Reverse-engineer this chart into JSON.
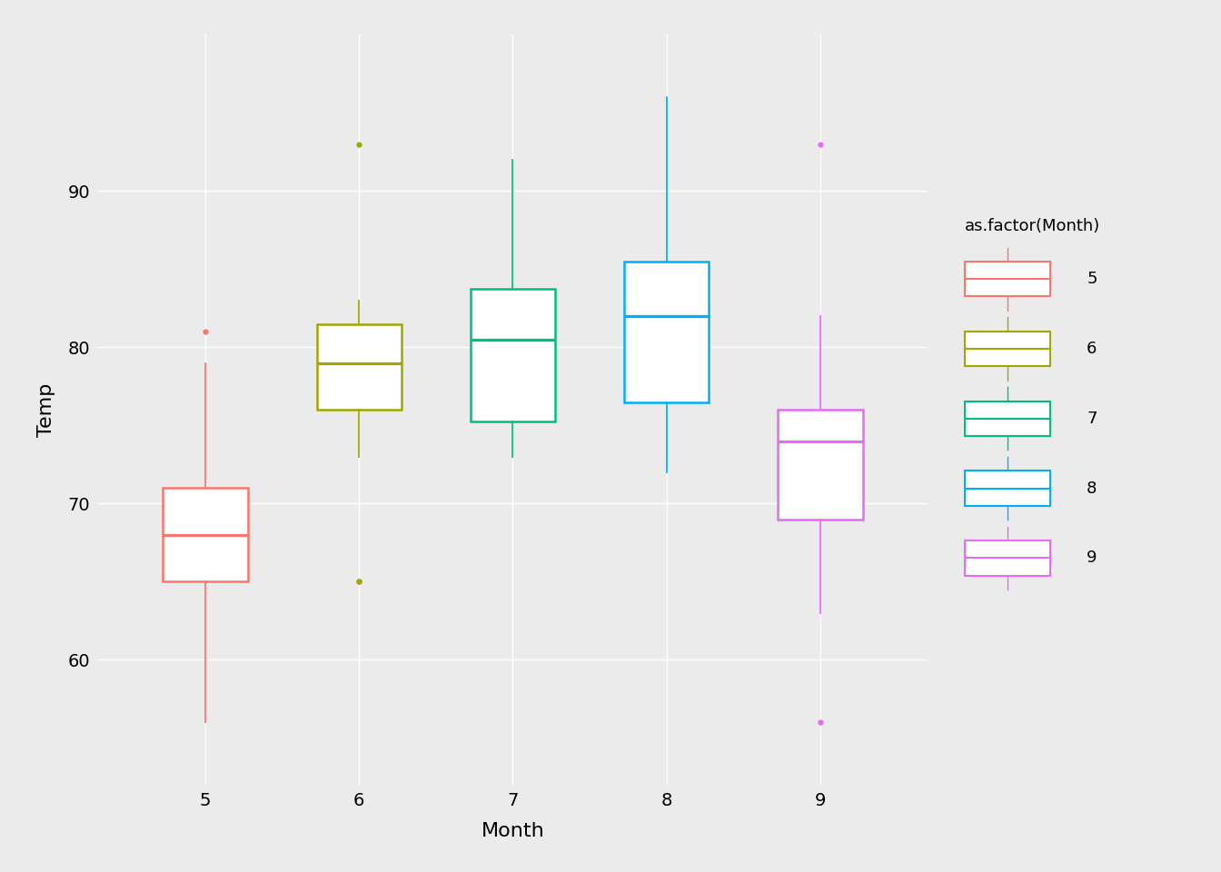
{
  "title": "",
  "xlabel": "Month",
  "ylabel": "Temp",
  "legend_title": "as.factor(Month)",
  "months": [
    5,
    6,
    7,
    8,
    9
  ],
  "colors": {
    "5": "#F8766D",
    "6": "#A3A500",
    "7": "#00BF7D",
    "8": "#00B0F6",
    "9": "#E76BF3"
  },
  "background_color": "#EBEBEB",
  "grid_color": "#FFFFFF",
  "ylim": [
    52,
    100
  ],
  "yticks": [
    60,
    70,
    80,
    90
  ],
  "data": {
    "5": [
      56,
      58,
      59,
      60,
      60,
      62,
      63,
      65,
      65,
      65,
      65,
      66,
      66,
      67,
      67,
      68,
      68,
      69,
      69,
      70,
      70,
      70,
      71,
      71,
      72,
      73,
      74,
      75,
      77,
      79,
      81
    ],
    "6": [
      65,
      65,
      73,
      74,
      75,
      75,
      75,
      76,
      76,
      76,
      77,
      77,
      77,
      78,
      79,
      79,
      80,
      80,
      80,
      80,
      80,
      81,
      81,
      82,
      82,
      82,
      82,
      83,
      83,
      83,
      93
    ],
    "7": [
      73,
      74,
      74,
      74,
      75,
      75,
      75,
      75,
      76,
      77,
      78,
      78,
      78,
      78,
      80,
      81,
      81,
      82,
      82,
      82,
      83,
      83,
      84,
      84,
      84,
      85,
      85,
      85,
      91,
      92
    ],
    "8": [
      72,
      72,
      73,
      74,
      74,
      75,
      76,
      76,
      77,
      78,
      79,
      79,
      80,
      81,
      82,
      82,
      82,
      83,
      83,
      83,
      83,
      84,
      85,
      86,
      87,
      87,
      88,
      89,
      90,
      91,
      96
    ],
    "9": [
      51,
      56,
      63,
      63,
      64,
      65,
      68,
      69,
      69,
      70,
      71,
      71,
      72,
      74,
      74,
      74,
      74,
      75,
      75,
      76,
      76,
      76,
      77,
      77,
      80,
      80,
      81,
      82,
      93
    ]
  }
}
